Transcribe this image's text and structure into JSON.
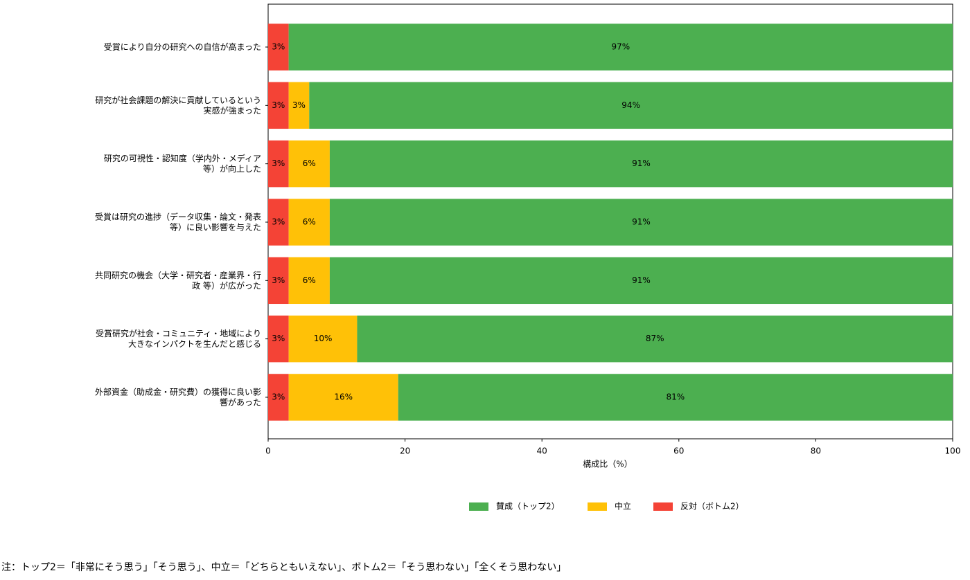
{
  "chart_data": {
    "type": "stacked-barh",
    "categories": [
      "受賞により自分の研究への自信が高まった",
      "研究が社会課題の解決に貢献しているという\n実感が強まった",
      "研究の可視性・認知度（学内外・メディア\n等）が向上した",
      "受賞は研究の進捗（データ収集・論文・発表\n等）に良い影響を与えた",
      "共同研究の機会（大学・研究者・産業界・行\n政 等）が広がった",
      "受賞研究が社会・コミュニティ・地域により\n大きなインパクトを生んだと感じる",
      "外部資金（助成金・研究費）の獲得に良い影\n響があった"
    ],
    "series": [
      {
        "name": "反対（ボトム2）",
        "color": "#f44336",
        "label_color": "#ffffff",
        "values": [
          3,
          3,
          3,
          3,
          3,
          3,
          3
        ],
        "value_labels": [
          "3%",
          "3%",
          "3%",
          "3%",
          "3%",
          "3%",
          "3%"
        ]
      },
      {
        "name": "中立",
        "color": "#ffc107",
        "label_color": "#000000",
        "values": [
          0,
          3,
          6,
          6,
          6,
          10,
          16
        ],
        "value_labels": [
          null,
          "3%",
          "6%",
          "6%",
          "6%",
          "10%",
          "16%"
        ]
      },
      {
        "name": "賛成（トップ2）",
        "color": "#4caf50",
        "label_color": "#ffffff",
        "values": [
          97,
          94,
          91,
          91,
          91,
          87,
          81
        ],
        "value_labels": [
          "97%",
          "94%",
          "91%",
          "91%",
          "91%",
          "87%",
          "81%"
        ]
      }
    ],
    "xlabel": "構成比（%）",
    "xlim": [
      0,
      100
    ],
    "xticks": [
      0,
      20,
      40,
      60,
      80,
      100
    ],
    "legend": "bottom",
    "note": "注：トップ2＝「非常にそう思う」「そう思う」、中立＝「どちらともいえない」、ボトム2＝「そう思わない」「全くそう思わない」"
  }
}
